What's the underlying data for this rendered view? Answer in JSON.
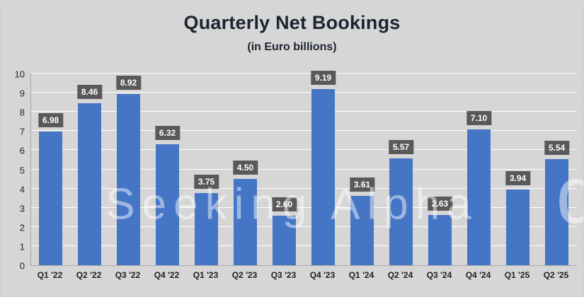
{
  "chart_data": {
    "type": "bar",
    "title": "Quarterly Net Bookings",
    "subtitle": "(in Euro billions)",
    "categories": [
      "Q1 '22",
      "Q2 '22",
      "Q3 '22",
      "Q4 '22",
      "Q1 '23",
      "Q2 '23",
      "Q3 '23",
      "Q4 '23",
      "Q1 '24",
      "Q2 '24",
      "Q3 '24",
      "Q4 '24",
      "Q1 '25",
      "Q2 '25"
    ],
    "values": [
      6.98,
      8.46,
      8.92,
      6.32,
      3.75,
      4.5,
      2.6,
      9.19,
      3.61,
      5.57,
      2.63,
      7.1,
      3.94,
      5.54
    ],
    "xlabel": "",
    "ylabel": "",
    "ylim": [
      0,
      10
    ],
    "yticks": [
      0,
      1,
      2,
      3,
      4,
      5,
      6,
      7,
      8,
      9,
      10
    ],
    "grid": true,
    "legend": false,
    "colors": {
      "bar": "#4576c6",
      "label_bg": "#595959",
      "label_text": "#ffffff",
      "background": "#d6d6d6",
      "gridline": "#ffffff",
      "axis": "#a6a6a6"
    },
    "watermark": "Seeking Alpha",
    "watermark_symbol": "α"
  }
}
